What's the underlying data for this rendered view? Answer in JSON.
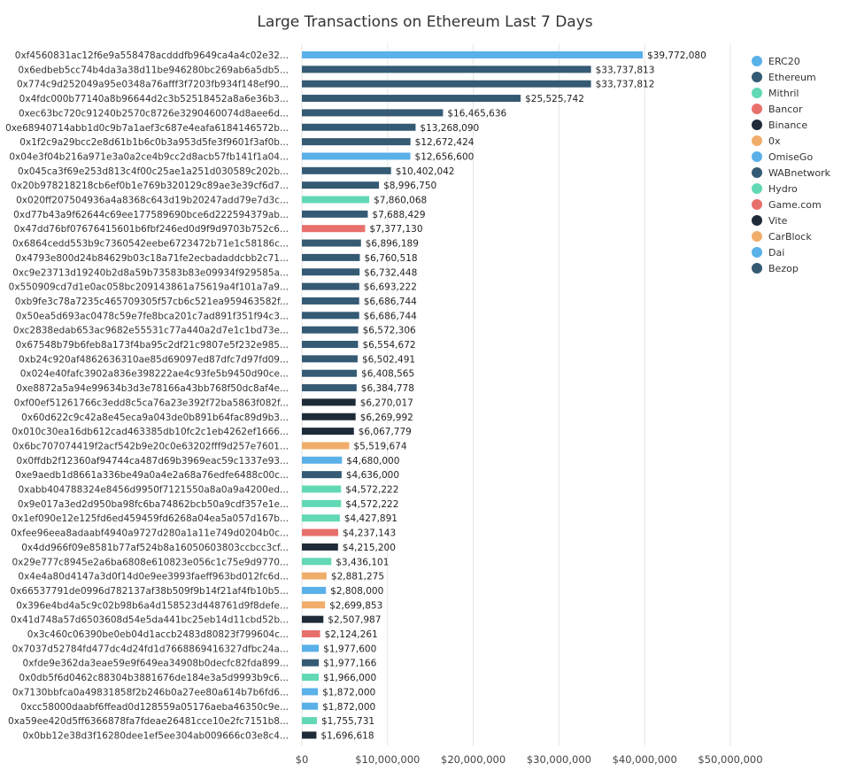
{
  "chart_data": {
    "type": "bar",
    "orientation": "horizontal",
    "title": "Large Transactions on Ethereum Last 7 Days",
    "xlim": [
      0,
      50000000
    ],
    "x_ticks": [
      "$0",
      "$10,000,000",
      "$20,000,000",
      "$30,000,000",
      "$40,000,000",
      "$50,000,000"
    ],
    "grid": true,
    "legend_position": "right",
    "legend": [
      {
        "name": "ERC20",
        "color": "#5ab0e8"
      },
      {
        "name": "Ethereum",
        "color": "#355a73"
      },
      {
        "name": "Mithril",
        "color": "#62d8b5"
      },
      {
        "name": "Bancor",
        "color": "#e8706c"
      },
      {
        "name": "Binance",
        "color": "#1f2b38"
      },
      {
        "name": "0x",
        "color": "#f0ad6a"
      },
      {
        "name": "OmiseGo",
        "color": "#5ab0e8"
      },
      {
        "name": "WABnetwork",
        "color": "#355a73"
      },
      {
        "name": "Hydro",
        "color": "#62d8b5"
      },
      {
        "name": "Game.com",
        "color": "#e8706c"
      },
      {
        "name": "Vite",
        "color": "#1f2b38"
      },
      {
        "name": "CarBlock",
        "color": "#f0ad6a"
      },
      {
        "name": "Dai",
        "color": "#5ab0e8"
      },
      {
        "name": "Bezop",
        "color": "#355a73"
      }
    ],
    "bars": [
      {
        "label": "0xf4560831ac12f6e9a558478acdddfb9649ca4a4c02e32...",
        "value": 39772080,
        "value_label": "$39,772,080",
        "color": "#5ab0e8"
      },
      {
        "label": "0x6edbeb5cc74b4da3a38d11be946280bc269ab6a5db5...",
        "value": 33737813,
        "value_label": "$33,737,813",
        "color": "#355a73"
      },
      {
        "label": "0x774c9d252049a95e0348a76afff3f7203fb934f148ef90...",
        "value": 33737812,
        "value_label": "$33,737,812",
        "color": "#355a73"
      },
      {
        "label": "0x4fdc000b77140a8b96644d2c3b52518452a8a6e36b3...",
        "value": 25525742,
        "value_label": "$25,525,742",
        "color": "#355a73"
      },
      {
        "label": "0xec63bc720c91240b2570c8726e3290460074d8aee6d...",
        "value": 16465636,
        "value_label": "$16,465,636",
        "color": "#355a73"
      },
      {
        "label": "0xe68940714abb1d0c9b7a1aef3c687e4eafa6184146572b...",
        "value": 13268090,
        "value_label": "$13,268,090",
        "color": "#355a73"
      },
      {
        "label": "0x1f2c9a29bcc2e8d61b1b6c0b3a953d5fe3f9601f3af0b...",
        "value": 12672424,
        "value_label": "$12,672,424",
        "color": "#355a73"
      },
      {
        "label": "0x04e3f04b216a971e3a0a2ce4b9cc2d8acb57fb141f1a04...",
        "value": 12656600,
        "value_label": "$12,656,600",
        "color": "#5ab0e8"
      },
      {
        "label": "0x045ca3f69e253d813c4f00c25ae1a251d030589c202b...",
        "value": 10402042,
        "value_label": "$10,402,042",
        "color": "#355a73"
      },
      {
        "label": "0x20b978218218cb6ef0b1e769b320129c89ae3e39cf6d7...",
        "value": 8996750,
        "value_label": "$8,996,750",
        "color": "#355a73"
      },
      {
        "label": "0x020ff207504936a4a8368c643d19b20247add79e7d3c...",
        "value": 7860068,
        "value_label": "$7,860,068",
        "color": "#62d8b5"
      },
      {
        "label": "0xd77b43a9f62644c69ee177589690bce6d222594379ab...",
        "value": 7688429,
        "value_label": "$7,688,429",
        "color": "#355a73"
      },
      {
        "label": "0x47dd76bf07676415601b6fbf246ed0d9f9d9703b752c6...",
        "value": 7377130,
        "value_label": "$7,377,130",
        "color": "#e8706c"
      },
      {
        "label": "0x6864cedd553b9c7360542eebe6723472b71e1c58186c...",
        "value": 6896189,
        "value_label": "$6,896,189",
        "color": "#355a73"
      },
      {
        "label": "0x4793e800d24b84629b03c18a71fe2ecbadaddcbb2c71...",
        "value": 6760518,
        "value_label": "$6,760,518",
        "color": "#355a73"
      },
      {
        "label": "0xc9e23713d19240b2d8a59b73583b83e09934f929585a...",
        "value": 6732448,
        "value_label": "$6,732,448",
        "color": "#355a73"
      },
      {
        "label": "0x550909cd7d1e0ac058bc209143861a75619a4f101a7a9...",
        "value": 6693222,
        "value_label": "$6,693,222",
        "color": "#355a73"
      },
      {
        "label": "0xb9fe3c78a7235c465709305f57cb6c521ea959463582f...",
        "value": 6686744,
        "value_label": "$6,686,744",
        "color": "#355a73"
      },
      {
        "label": "0x50ea5d693ac0478c59e7fe8bca201c7ad891f351f94c3...",
        "value": 6686744,
        "value_label": "$6,686,744",
        "color": "#355a73"
      },
      {
        "label": "0xc2838edab653ac9682e55531c77a440a2d7e1c1bd73e...",
        "value": 6572306,
        "value_label": "$6,572,306",
        "color": "#355a73"
      },
      {
        "label": "0x67548b79b6feb8a173f4ba95c2df21c9807e5f232e985...",
        "value": 6554672,
        "value_label": "$6,554,672",
        "color": "#355a73"
      },
      {
        "label": "0xb24c920af4862636310ae85d69097ed87dfc7d97fd09...",
        "value": 6502491,
        "value_label": "$6,502,491",
        "color": "#355a73"
      },
      {
        "label": "0x024e40fafc3902a836e398222ae4c93fe5b9450d90ce...",
        "value": 6408565,
        "value_label": "$6,408,565",
        "color": "#355a73"
      },
      {
        "label": "0xe8872a5a94e99634b3d3e78166a43bb768f50dc8af4e...",
        "value": 6384778,
        "value_label": "$6,384,778",
        "color": "#355a73"
      },
      {
        "label": "0xf00ef51261766c3edd8c5ca76a23e392f72ba5863f082f...",
        "value": 6270017,
        "value_label": "$6,270,017",
        "color": "#1f2b38"
      },
      {
        "label": "0x60d622c9c42a8e45eca9a043de0b891b64fac89d9b3...",
        "value": 6269992,
        "value_label": "$6,269,992",
        "color": "#1f2b38"
      },
      {
        "label": "0x010c30ea16db612cad463385db10fc2c1eb4262ef1666...",
        "value": 6067779,
        "value_label": "$6,067,779",
        "color": "#1f2b38"
      },
      {
        "label": "0x6bc707074419f2acf542b9e20c0e63202fff9d257e7601...",
        "value": 5519674,
        "value_label": "$5,519,674",
        "color": "#f0ad6a"
      },
      {
        "label": "0x0ffdb2f12360af94744ca487d69b3969eac59c1337e93...",
        "value": 4680000,
        "value_label": "$4,680,000",
        "color": "#5ab0e8"
      },
      {
        "label": "0xe9aedb1d8661a336be49a0a4e2a68a76edfe6488c00c...",
        "value": 4636000,
        "value_label": "$4,636,000",
        "color": "#355a73"
      },
      {
        "label": "0xabb404788324e8456d9950f7121550a8a0a9a4200ed...",
        "value": 4572222,
        "value_label": "$4,572,222",
        "color": "#62d8b5"
      },
      {
        "label": "0x9e017a3ed2d950ba98fc6ba74862bcb50a9cdf357e1e...",
        "value": 4572222,
        "value_label": "$4,572,222",
        "color": "#62d8b5"
      },
      {
        "label": "0x1ef090e12e125fd6ed459459fd6268a04ea5a057d167b...",
        "value": 4427891,
        "value_label": "$4,427,891",
        "color": "#62d8b5"
      },
      {
        "label": "0xfee96eea8adaabf4940a9727d280a1a11e749d0204b0c...",
        "value": 4237143,
        "value_label": "$4,237,143",
        "color": "#e8706c"
      },
      {
        "label": "0x4dd966f09e8581b77af524b8a16050603803ccbcc3cf...",
        "value": 4215200,
        "value_label": "$4,215,200",
        "color": "#1f2b38"
      },
      {
        "label": "0x29e777c8945e2a6ba6808e610823e056c1c75e9d9770...",
        "value": 3436101,
        "value_label": "$3,436,101",
        "color": "#62d8b5"
      },
      {
        "label": "0x4e4a80d4147a3d0f14d0e9ee3993faeff963bd012fc6d...",
        "value": 2881275,
        "value_label": "$2,881,275",
        "color": "#f0ad6a"
      },
      {
        "label": "0x66537791de0996d782137af38b509f9b14f21af4fb10b5...",
        "value": 2808000,
        "value_label": "$2,808,000",
        "color": "#5ab0e8"
      },
      {
        "label": "0x396e4bd4a5c9c02b98b6a4d158523d448761d9f8defe...",
        "value": 2699853,
        "value_label": "$2,699,853",
        "color": "#f0ad6a"
      },
      {
        "label": "0x41d748a57d6503608d54e5da441bc25eb14d11cbd52b...",
        "value": 2507987,
        "value_label": "$2,507,987",
        "color": "#1f2b38"
      },
      {
        "label": "0x3c460c06390be0eb04d1accb2483d80823f799604c...",
        "value": 2124261,
        "value_label": "$2,124,261",
        "color": "#e8706c"
      },
      {
        "label": "0x7037d52784fd477dc4d24fd1d7668869416327dfbc24a...",
        "value": 1977600,
        "value_label": "$1,977,600",
        "color": "#5ab0e8"
      },
      {
        "label": "0xfde9e362da3eae59e9f649ea34908b0decfc82fda899...",
        "value": 1977166,
        "value_label": "$1,977,166",
        "color": "#355a73"
      },
      {
        "label": "0x0db5f6d0462c88304b3881676de184e3a5d9993b9c6...",
        "value": 1966000,
        "value_label": "$1,966,000",
        "color": "#62d8b5"
      },
      {
        "label": "0x7130bbfca0a49831858f2b246b0a27ee80a614b7b6fd6...",
        "value": 1872000,
        "value_label": "$1,872,000",
        "color": "#5ab0e8"
      },
      {
        "label": "0xcc58000daabf6ffead0d128559a05176aeba46350c9e...",
        "value": 1872000,
        "value_label": "$1,872,000",
        "color": "#5ab0e8"
      },
      {
        "label": "0xa59ee420d5ff6366878fa7fdeae26481cce10e2fc7151b8...",
        "value": 1755731,
        "value_label": "$1,755,731",
        "color": "#62d8b5"
      },
      {
        "label": "0x0bb12e38d3f16280dee1ef5ee304ab009666c03e8c4...",
        "value": 1696618,
        "value_label": "$1,696,618",
        "color": "#1f2b38"
      }
    ]
  }
}
